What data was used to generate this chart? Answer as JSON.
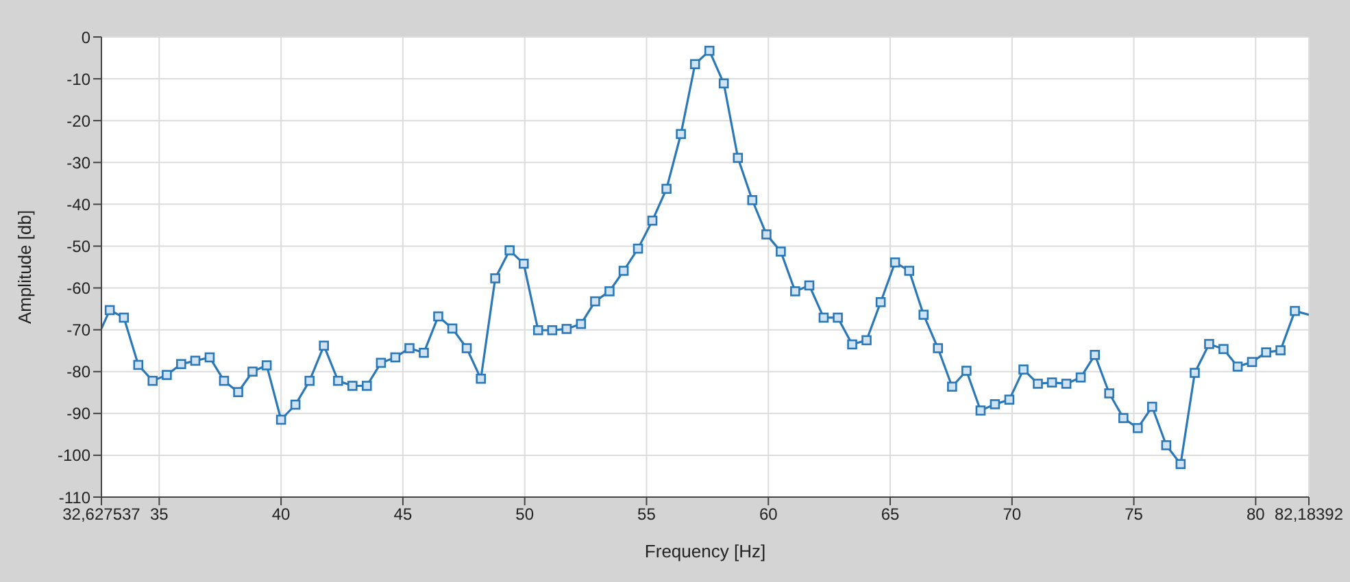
{
  "chart_data": {
    "type": "line",
    "xlabel": "Frequency [Hz]",
    "ylabel": "Amplitude [db]",
    "xlim": [
      32.627537,
      82.18392
    ],
    "ylim": [
      -110,
      0
    ],
    "xticks": [
      {
        "value": 32.627537,
        "label": "32,627537"
      },
      35,
      40,
      45,
      50,
      55,
      60,
      65,
      70,
      75,
      80,
      {
        "value": 82.18392,
        "label": "82,18392"
      }
    ],
    "yticks": [
      0,
      -10,
      -20,
      -30,
      -40,
      -50,
      -60,
      -70,
      -80,
      -90,
      -100,
      -110
    ],
    "grid": true,
    "marker": "square",
    "line_style": "solid",
    "series": [
      {
        "color": "#2b78b8",
        "x": [
          32.627537,
          32.97,
          33.55,
          34.14,
          34.73,
          35.31,
          35.9,
          36.48,
          37.07,
          37.66,
          38.24,
          38.83,
          39.41,
          40,
          40.59,
          41.17,
          41.76,
          42.34,
          42.93,
          43.52,
          44.1,
          44.69,
          45.27,
          45.86,
          46.45,
          47.03,
          47.62,
          48.2,
          48.79,
          49.38,
          49.96,
          50.55,
          51.13,
          51.72,
          52.31,
          52.89,
          53.48,
          54.06,
          54.65,
          55.24,
          55.82,
          56.41,
          56.99,
          57.58,
          58.17,
          58.75,
          59.34,
          59.92,
          60.51,
          61.1,
          61.68,
          62.27,
          62.85,
          63.44,
          64.03,
          64.61,
          65.2,
          65.78,
          66.37,
          66.96,
          67.54,
          68.13,
          68.71,
          69.3,
          69.89,
          70.47,
          71.06,
          71.64,
          72.23,
          72.82,
          73.4,
          73.99,
          74.57,
          75.16,
          75.75,
          76.33,
          76.92,
          77.5,
          78.09,
          78.68,
          79.26,
          79.85,
          80.43,
          81.02,
          81.61,
          82.18392
        ],
        "values": [
          -69.7,
          -65.3,
          -67.1,
          -78.4,
          -82.2,
          -80.8,
          -78.2,
          -77.4,
          -76.6,
          -82.2,
          -84.9,
          -80.0,
          -78.5,
          -91.5,
          -87.9,
          -82.2,
          -73.8,
          -82.2,
          -83.4,
          -83.4,
          -77.9,
          -76.6,
          -74.4,
          -75.5,
          -66.8,
          -69.7,
          -74.4,
          -81.7,
          -57.7,
          -51.0,
          -54.2,
          -70.1,
          -70.1,
          -69.8,
          -68.6,
          -63.2,
          -60.8,
          -55.9,
          -50.6,
          -43.9,
          -36.3,
          -23.2,
          -6.5,
          -3.3,
          -11.1,
          -28.9,
          -39.0,
          -47.2,
          -51.3,
          -60.8,
          -59.4,
          -67.1,
          -67.1,
          -73.5,
          -72.5,
          -63.4,
          -53.9,
          -55.9,
          -66.4,
          -74.4,
          -83.6,
          -79.8,
          -89.3,
          -87.8,
          -86.7,
          -79.5,
          -82.9,
          -82.6,
          -82.9,
          -81.4,
          -76.0,
          -85.2,
          -91.1,
          -93.5,
          -88.4,
          -97.6,
          -102.1,
          -80.3,
          -73.4,
          -74.6,
          -78.8,
          -77.7,
          -75.4,
          -74.9,
          -65.5,
          -66.4
        ]
      }
    ]
  }
}
